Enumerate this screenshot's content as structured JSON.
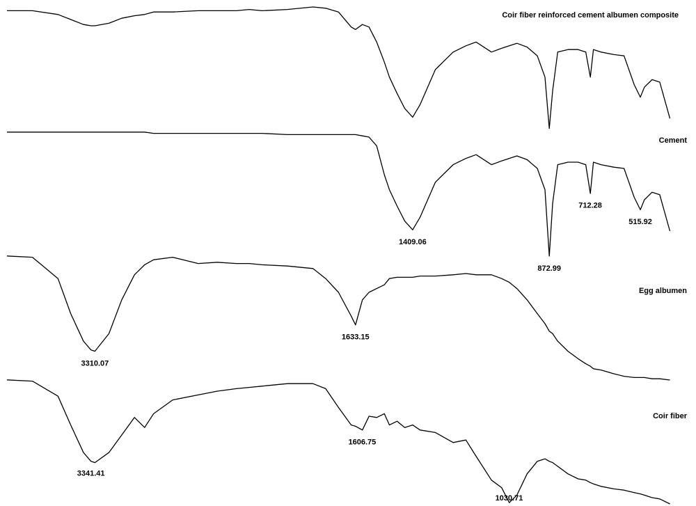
{
  "chart_data": {
    "type": "line",
    "xlim": [
      4000,
      385
    ],
    "x_break": 2000,
    "ylim": [
      0,
      100
    ],
    "x": [
      4000,
      3800,
      3600,
      3500,
      3400,
      3341,
      3310,
      3200,
      3100,
      3000,
      2920,
      2850,
      2700,
      2500,
      2350,
      2200,
      2100,
      2000,
      1900,
      1800,
      1750,
      1700,
      1650,
      1633,
      1606,
      1580,
      1550,
      1520,
      1500,
      1470,
      1440,
      1409,
      1380,
      1320,
      1250,
      1200,
      1160,
      1100,
      1060,
      1030,
      1000,
      960,
      920,
      890,
      873,
      860,
      840,
      800,
      760,
      730,
      712,
      700,
      670,
      620,
      580,
      540,
      516,
      500,
      470,
      440,
      400
    ],
    "series": [
      {
        "name": "Coir fiber reinforced cement albumen composite",
        "color": "#000000",
        "values": [
          97,
          97,
          94,
          90,
          86,
          85,
          85,
          87,
          91,
          93,
          94,
          96,
          96,
          97,
          97,
          97,
          98,
          97,
          98,
          100,
          99,
          96,
          84,
          82,
          86,
          84,
          72,
          56,
          44,
          31,
          19,
          12,
          22,
          50,
          64,
          69,
          72,
          64,
          67,
          69,
          71,
          68,
          61,
          44,
          3,
          33,
          64,
          66,
          66,
          64,
          44,
          66,
          64,
          62,
          61,
          38,
          28,
          36,
          42,
          40,
          11
        ],
        "peaks": []
      },
      {
        "name": "Cement",
        "color": "#000000",
        "values": [
          99,
          99,
          99,
          99,
          99,
          99,
          99,
          99,
          99,
          99,
          99,
          98,
          98,
          98,
          98,
          98,
          98,
          98,
          97,
          97,
          97,
          97,
          97,
          97,
          96,
          95,
          88,
          65,
          53,
          40,
          28,
          21,
          31,
          59,
          73,
          78,
          81,
          73,
          76,
          78,
          80,
          77,
          70,
          53,
          0,
          42,
          73,
          75,
          75,
          73,
          50,
          75,
          73,
          71,
          70,
          47,
          37,
          45,
          51,
          49,
          20
        ],
        "peaks": [
          1409.06,
          872.99,
          712.28,
          515.92
        ]
      },
      {
        "name": "Egg albumen",
        "color": "#000000",
        "values": [
          99,
          98,
          81,
          53,
          31,
          24,
          23,
          37,
          64,
          84,
          92,
          96,
          98,
          93,
          94,
          93,
          93,
          92,
          91,
          89,
          81,
          70,
          51,
          44,
          64,
          70,
          73,
          76,
          81,
          82,
          82,
          82,
          83,
          83,
          84,
          85,
          84,
          84,
          81,
          78,
          73,
          64,
          53,
          45,
          39,
          37,
          31,
          23,
          17,
          13,
          11,
          9,
          8,
          5,
          3,
          2,
          2,
          2,
          1,
          1,
          0
        ],
        "peaks": [
          3310.07,
          1633.15
        ]
      },
      {
        "name": "Coir fiber",
        "color": "#000000",
        "values": [
          99,
          98,
          86,
          63,
          41,
          34,
          33,
          41,
          55,
          69,
          61,
          72,
          83,
          87,
          90,
          92,
          93,
          94,
          96,
          96,
          92,
          77,
          63,
          62,
          59,
          70,
          69,
          72,
          63,
          66,
          61,
          63,
          59,
          57,
          49,
          51,
          38,
          19,
          13,
          1,
          7,
          24,
          34,
          36,
          34,
          33,
          30,
          24,
          20,
          19,
          17,
          16,
          14,
          12,
          11,
          9,
          8,
          7,
          5,
          4,
          0
        ],
        "peaks": [
          3341.41,
          1606.75,
          1030.71
        ]
      }
    ]
  }
}
